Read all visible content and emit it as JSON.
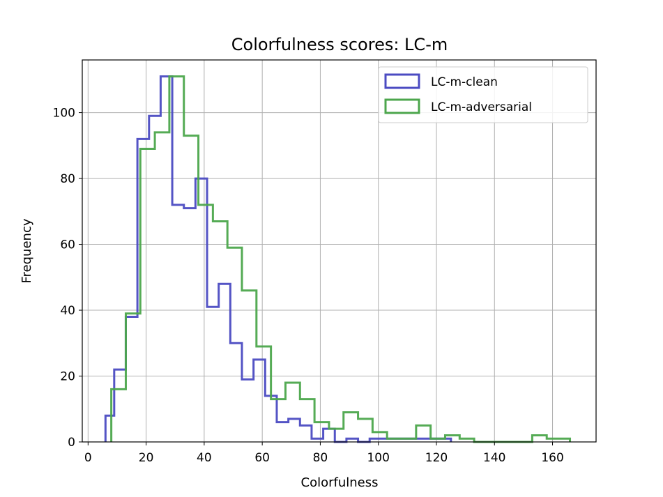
{
  "chart_data": {
    "type": "histogram",
    "title": "Colorfulness scores: LC-m",
    "xlabel": "Colorfulness",
    "ylabel": "Frequency",
    "xlim": [
      -2,
      175
    ],
    "ylim": [
      0,
      116
    ],
    "x_ticks": [
      0,
      20,
      40,
      60,
      80,
      100,
      120,
      140,
      160
    ],
    "y_ticks": [
      0,
      20,
      40,
      60,
      80,
      100
    ],
    "grid": true,
    "legend_position": "top-right",
    "series": [
      {
        "name": "LC-m-clean",
        "color": "#4b4bc2",
        "bin_edges": [
          6,
          9,
          13,
          17,
          21,
          25,
          29,
          33,
          37,
          41,
          45,
          49,
          53,
          57,
          61,
          65,
          69,
          73,
          77,
          81,
          85,
          89,
          93,
          97,
          101,
          105,
          109,
          113,
          117,
          121,
          125
        ],
        "counts": [
          8,
          22,
          38,
          92,
          99,
          111,
          72,
          71,
          80,
          41,
          48,
          30,
          19,
          25,
          14,
          6,
          7,
          5,
          1,
          4,
          0,
          1,
          0,
          1,
          1,
          1,
          1,
          1,
          1,
          1
        ]
      },
      {
        "name": "LC-m-adversarial",
        "color": "#4ca64c",
        "bin_edges": [
          8,
          13,
          18,
          23,
          28,
          33,
          38,
          43,
          48,
          53,
          58,
          63,
          68,
          73,
          78,
          83,
          88,
          93,
          98,
          103,
          108,
          113,
          118,
          123,
          128,
          133,
          138,
          143,
          148,
          153,
          158,
          163,
          166
        ],
        "counts": [
          16,
          39,
          89,
          94,
          111,
          93,
          72,
          67,
          59,
          46,
          29,
          13,
          18,
          13,
          6,
          4,
          9,
          7,
          3,
          1,
          1,
          5,
          1,
          2,
          1,
          0,
          0,
          0,
          0,
          2,
          1,
          1
        ]
      }
    ]
  }
}
